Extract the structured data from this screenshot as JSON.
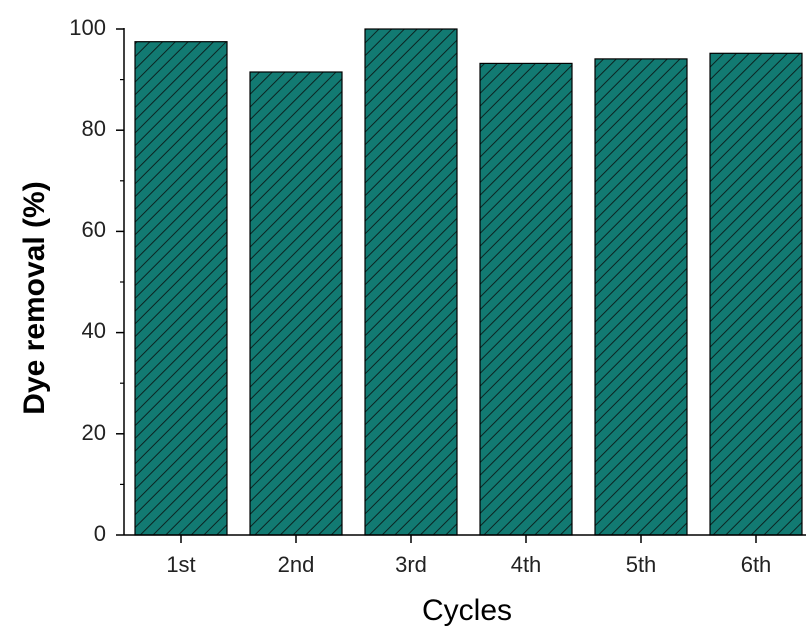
{
  "chart_data": {
    "type": "bar",
    "title": "",
    "xlabel": "Cycles",
    "ylabel": "Dye removal (%)",
    "categories": [
      "1st",
      "2nd",
      "3rd",
      "4th",
      "5th",
      "6th"
    ],
    "values": [
      97.5,
      91.5,
      100,
      93.2,
      94.1,
      95.2
    ],
    "ylim": [
      0,
      100
    ],
    "yticks": [
      "0",
      "20",
      "40",
      "60",
      "80",
      "100"
    ],
    "grid": false,
    "bar_color": "#127a72",
    "hatch_color": "#0b2422",
    "axis_color": "#000000"
  }
}
